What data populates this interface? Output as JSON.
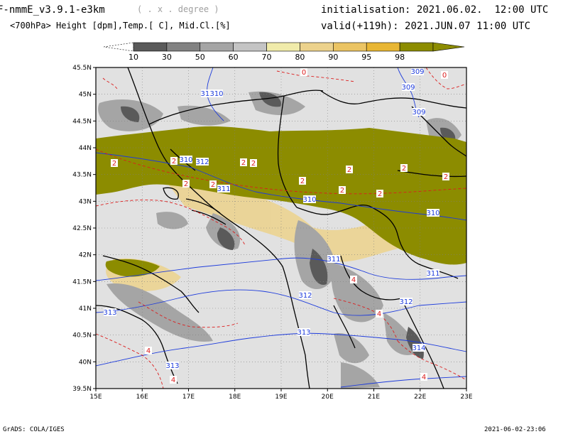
{
  "header": {
    "model_title": "F-nmmE_v3.9.1-e3km",
    "model_unit": "( . x . degree )",
    "variable_desc": "<700hPa> Height [dpm],Temp.[ C], Mid.Cl.[%]",
    "init_label": "initialisation:",
    "init_time": "2021.06.02.  12:00 UTC",
    "valid_label": "valid(+119h):",
    "valid_time": "2021.JUN.07 11:00 UTC"
  },
  "colorbar": {
    "labels": [
      "10",
      "30",
      "50",
      "60",
      "70",
      "80",
      "90",
      "95",
      "98"
    ],
    "colors": [
      "#5a5a5a",
      "#828282",
      "#a5a5a5",
      "#c4c4c4",
      "#f0ebaa",
      "#ecd28c",
      "#ebc463",
      "#e8b634",
      "#8c8c00"
    ]
  },
  "map": {
    "lon_ticks": [
      "15E",
      "16E",
      "17E",
      "18E",
      "19E",
      "20E",
      "21E",
      "22E",
      "23E"
    ],
    "lat_ticks": [
      "45.5N",
      "45N",
      "44.5N",
      "44N",
      "43.5N",
      "43N",
      "42.5N",
      "42N",
      "41.5N",
      "41N",
      "40.5N",
      "40N",
      "39.5N"
    ],
    "height_labels": [
      "309",
      "313",
      "310",
      "309",
      "309",
      "310",
      "312",
      "311",
      "310",
      "310",
      "311",
      "311",
      "312",
      "312",
      "313",
      "313",
      "313",
      "314"
    ],
    "temp_labels": [
      "0",
      "0",
      "2",
      "2",
      "2",
      "2",
      "2",
      "2",
      "2",
      "2",
      "2",
      "2",
      "2",
      "2",
      "4",
      "4",
      "4",
      "4",
      "4"
    ],
    "colors": {
      "background": "#e1e1e1",
      "cloud_high": "#8c8c00",
      "height_contour": "#1e3cdc",
      "temp_contour": "#dc1e1e",
      "border": "#000000"
    }
  },
  "footer": {
    "left": "GrADS: COLA/IGES",
    "right": "2021-06-02-23:06"
  }
}
